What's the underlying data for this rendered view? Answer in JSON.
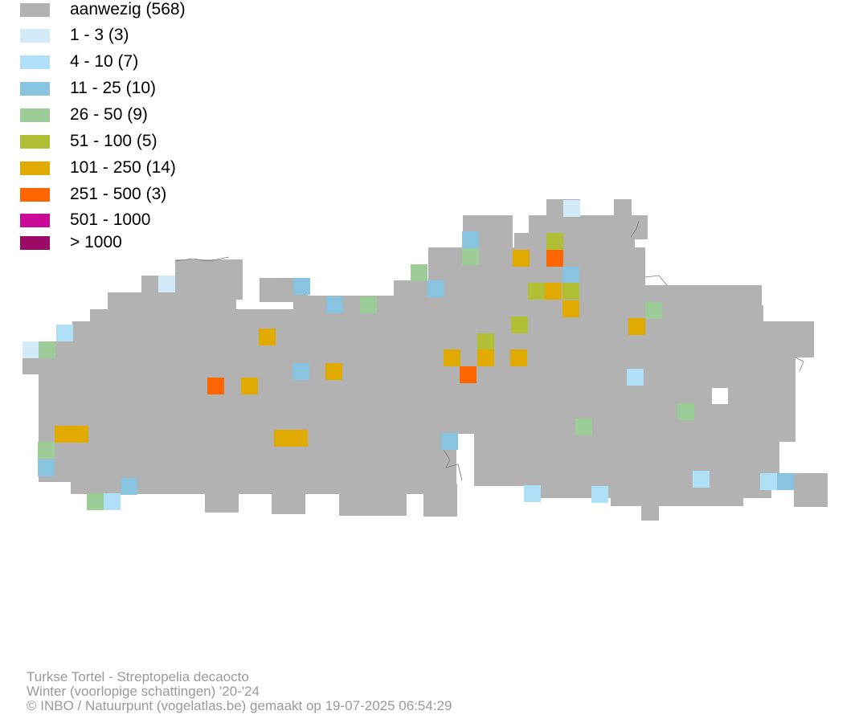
{
  "legend": {
    "items": [
      {
        "label": "aanwezig (568)",
        "color": "#b2b2b2"
      },
      {
        "label": "1 - 3 (3)",
        "color": "#d3ebf9"
      },
      {
        "label": "4 - 10 (7)",
        "color": "#b0e0f8"
      },
      {
        "label": "11 - 25 (10)",
        "color": "#88c4e0"
      },
      {
        "label": "26 - 50 (9)",
        "color": "#9ccc98"
      },
      {
        "label": "51 - 100 (5)",
        "color": "#b0bf35"
      },
      {
        "label": "101 - 250 (14)",
        "color": "#e0aa00"
      },
      {
        "label": "251 - 500 (3)",
        "color": "#ff6600"
      },
      {
        "label": "501 - 1000",
        "color": "#cc0a99"
      },
      {
        "label": "> 1000",
        "color": "#9a0a66"
      }
    ]
  },
  "footer": {
    "species": "Turkse Tortel - Streptopelia decaocto",
    "period": "Winter (voorlopige schattingen) '20-'24",
    "credit": "© INBO / Natuurpunt (vogelatlas.be) gemaakt op 19-07-2025 06:54:29"
  }
}
